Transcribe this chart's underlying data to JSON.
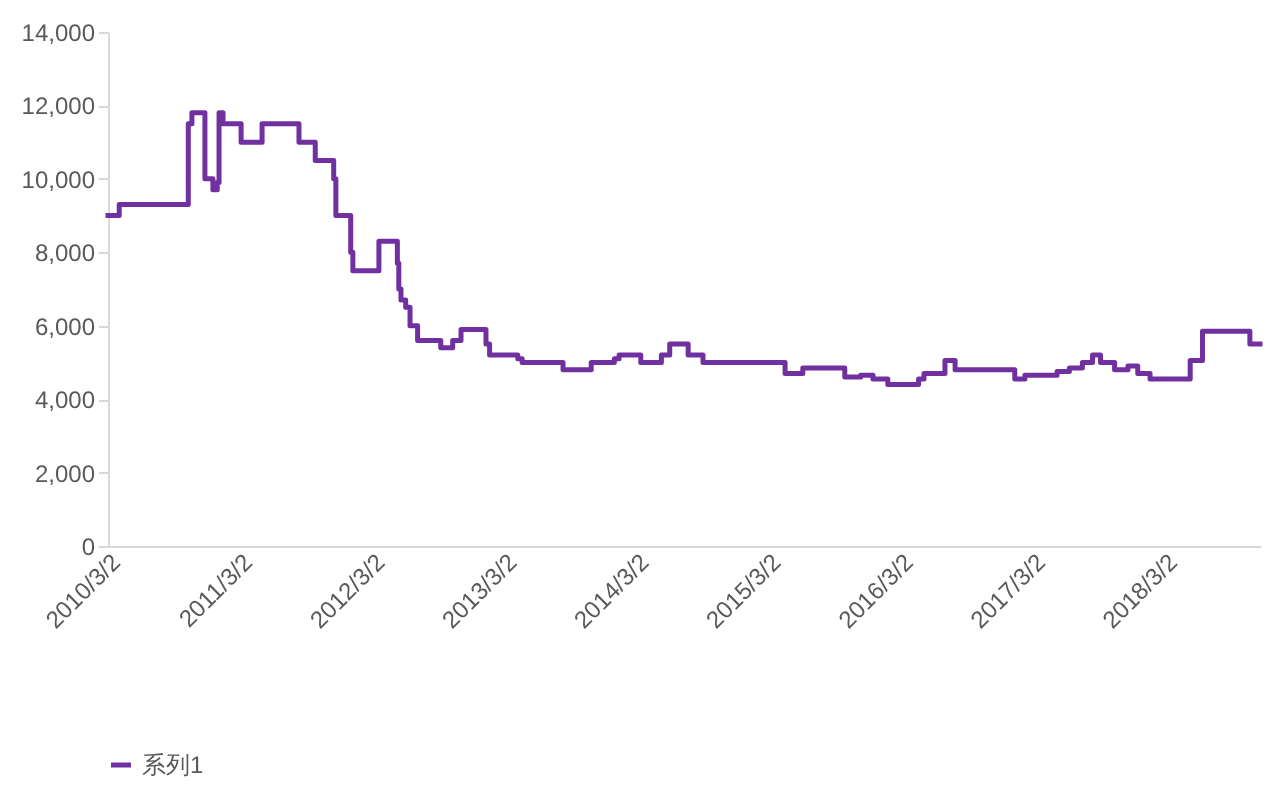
{
  "chart_data": {
    "type": "step",
    "x": [
      "2010-03-02",
      "2010-04-02",
      "2010-10-10",
      "2010-10-20",
      "2010-11-25",
      "2010-12-17",
      "2010-12-29",
      "2011-01-03",
      "2011-01-14",
      "2011-03-05",
      "2011-05-02",
      "2011-08-12",
      "2011-09-26",
      "2011-11-16",
      "2011-11-22",
      "2012-01-02",
      "2012-01-08",
      "2012-03-20",
      "2012-05-10",
      "2012-05-14",
      "2012-05-20",
      "2012-06-02",
      "2012-06-14",
      "2012-07-05",
      "2012-09-07",
      "2012-10-10",
      "2012-11-02",
      "2013-01-10",
      "2013-01-20",
      "2013-04-08",
      "2013-04-20",
      "2013-08-11",
      "2013-10-28",
      "2013-12-31",
      "2014-01-13",
      "2014-03-14",
      "2014-05-10",
      "2014-06-02",
      "2014-07-23",
      "2014-09-02",
      "2015-04-17",
      "2015-06-05",
      "2015-09-29",
      "2015-11-12",
      "2015-12-16",
      "2016-01-26",
      "2016-04-20",
      "2016-05-05",
      "2016-07-02",
      "2016-07-30",
      "2017-01-11",
      "2017-02-08",
      "2017-05-08",
      "2017-06-11",
      "2017-07-17",
      "2017-08-14",
      "2017-09-05",
      "2017-10-14",
      "2017-11-20",
      "2017-12-17",
      "2018-01-20",
      "2018-05-11",
      "2018-06-14",
      "2018-10-23"
    ],
    "series": [
      {
        "name": "系列1",
        "color": "#7030a0",
        "values": [
          9000,
          9300,
          11500,
          11800,
          10000,
          9700,
          9900,
          11800,
          11500,
          11000,
          11500,
          11000,
          10500,
          10000,
          9000,
          8000,
          7500,
          8300,
          7700,
          7000,
          6700,
          6500,
          6000,
          5600,
          5400,
          5600,
          5900,
          5500,
          5200,
          5100,
          5000,
          4800,
          5000,
          5100,
          5200,
          5000,
          5200,
          5500,
          5200,
          5000,
          4700,
          4850,
          4600,
          4650,
          4550,
          4400,
          4550,
          4700,
          5050,
          4800,
          4550,
          4650,
          4750,
          4850,
          5000,
          5200,
          5000,
          4800,
          4900,
          4700,
          4550,
          5050,
          5850,
          5500
        ]
      }
    ],
    "xlim": [
      "2010-03-02",
      "2018-11-20"
    ],
    "xticks": [
      {
        "value": "2010-03-02",
        "label": "2010/3/2"
      },
      {
        "value": "2011-03-02",
        "label": "2011/3/2"
      },
      {
        "value": "2012-03-02",
        "label": "2012/3/2"
      },
      {
        "value": "2013-03-02",
        "label": "2013/3/2"
      },
      {
        "value": "2014-03-02",
        "label": "2014/3/2"
      },
      {
        "value": "2015-03-02",
        "label": "2015/3/2"
      },
      {
        "value": "2016-03-02",
        "label": "2016/3/2"
      },
      {
        "value": "2017-03-02",
        "label": "2017/3/2"
      },
      {
        "value": "2018-03-02",
        "label": "2018/3/2"
      }
    ],
    "ylim": [
      0,
      14000
    ],
    "yticks": [
      0,
      {
        "value": 2000,
        "label": "2,000"
      },
      {
        "value": 4000,
        "label": "4,000"
      },
      {
        "value": 6000,
        "label": "6,000"
      },
      {
        "value": 8000,
        "label": "8,000"
      },
      {
        "value": 10000,
        "label": "10,000"
      },
      {
        "value": 12000,
        "label": "12,000"
      },
      {
        "value": 14000,
        "label": "14,000"
      }
    ],
    "legend": "bottom"
  }
}
